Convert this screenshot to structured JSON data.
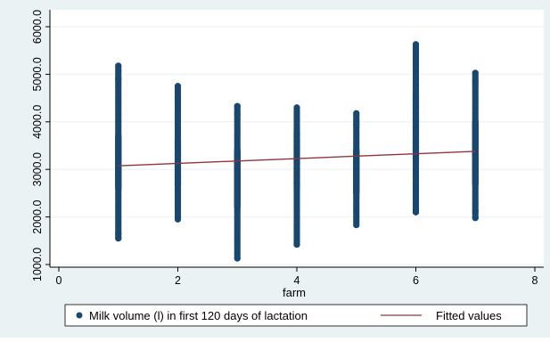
{
  "chart_data": {
    "type": "scatter",
    "xlabel": "farm",
    "ylabel": "",
    "xlim": [
      0,
      8
    ],
    "ylim": [
      1000,
      6000
    ],
    "x_ticks": [
      0,
      2,
      4,
      6,
      8
    ],
    "x_tick_labels": [
      "0",
      "2",
      "4",
      "6",
      "8"
    ],
    "y_ticks": [
      1000,
      2000,
      3000,
      4000,
      5000,
      6000
    ],
    "y_tick_labels": [
      "1000.0",
      "2000.0",
      "3000.0",
      "4000.0",
      "5000.0",
      "6000.0"
    ],
    "grid": "horizontal",
    "legend_position": "bottom",
    "series": [
      {
        "name": "Milk volume (l) in first 120 days of lactation",
        "kind": "points",
        "color": "#1a476f",
        "groups": [
          {
            "x": 1,
            "min": 1550,
            "q1": 2600,
            "q3": 3700,
            "max": 5180,
            "outliers": [
              1650,
              1550,
              4900,
              5180
            ]
          },
          {
            "x": 2,
            "min": 1950,
            "q1": 2650,
            "q3": 3600,
            "max": 4750,
            "outliers": [
              4500,
              4750
            ]
          },
          {
            "x": 3,
            "min": 1130,
            "q1": 2200,
            "q3": 3400,
            "max": 4330,
            "outliers": [
              1130,
              4150,
              4330
            ]
          },
          {
            "x": 4,
            "min": 1420,
            "q1": 2600,
            "q3": 3800,
            "max": 4330,
            "outliers": [
              1420,
              1480
            ]
          },
          {
            "x": 5,
            "min": 1830,
            "q1": 2500,
            "q3": 3400,
            "max": 4180,
            "outliers": [
              3950,
              4180
            ]
          },
          {
            "x": 6,
            "min": 2100,
            "q1": 3200,
            "q3": 4600,
            "max": 5630,
            "outliers": [
              2100,
              2150,
              5200,
              5400,
              5630
            ]
          },
          {
            "x": 7,
            "min": 1980,
            "q1": 2700,
            "q3": 4000,
            "max": 5030,
            "outliers": [
              1980,
              2120,
              4850,
              5030
            ]
          }
        ]
      },
      {
        "name": "Fitted values",
        "kind": "line",
        "color": "#90353b",
        "x": [
          1,
          7
        ],
        "y": [
          3075,
          3380
        ]
      }
    ]
  }
}
